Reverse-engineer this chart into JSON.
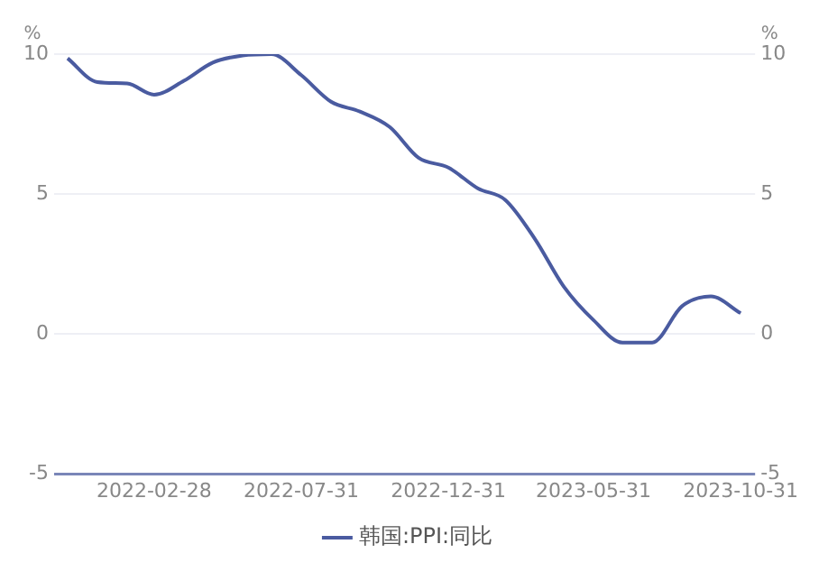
{
  "chart_data": {
    "type": "line",
    "ylabel": "%",
    "y2label": "%",
    "x": [
      "2021-11-30",
      "2021-12-31",
      "2022-01-31",
      "2022-02-28",
      "2022-03-31",
      "2022-04-30",
      "2022-05-31",
      "2022-06-30",
      "2022-07-31",
      "2022-08-31",
      "2022-09-30",
      "2022-10-31",
      "2022-11-30",
      "2022-12-31",
      "2023-01-31",
      "2023-02-28",
      "2023-03-31",
      "2023-04-30",
      "2023-05-31",
      "2023-06-30",
      "2023-07-31",
      "2023-08-31",
      "2023-09-30",
      "2023-10-31"
    ],
    "series": [
      {
        "name": "韩国:PPI:同比",
        "color": "#4a5ba0",
        "values": [
          9.85,
          9.0,
          8.95,
          8.55,
          9.05,
          9.7,
          9.95,
          10.0,
          9.25,
          8.3,
          7.95,
          7.4,
          6.3,
          5.95,
          5.2,
          4.8,
          3.4,
          1.7,
          0.5,
          -0.3,
          -0.3,
          1.0,
          1.35,
          0.75
        ]
      }
    ],
    "xlim": [
      "2021-11-16",
      "2023-11-15"
    ],
    "xticks": [
      "2022-02-28",
      "2022-07-31",
      "2022-12-31",
      "2023-05-31",
      "2023-10-31"
    ],
    "ylim": [
      -5,
      10
    ],
    "yticks": [
      -5,
      0,
      5,
      10
    ],
    "y2lim": [
      -5,
      10
    ],
    "y2ticks": [
      -5,
      0,
      5,
      10
    ],
    "grid": "y",
    "legend": "bottom",
    "marker": "none",
    "line_style": "solid"
  }
}
